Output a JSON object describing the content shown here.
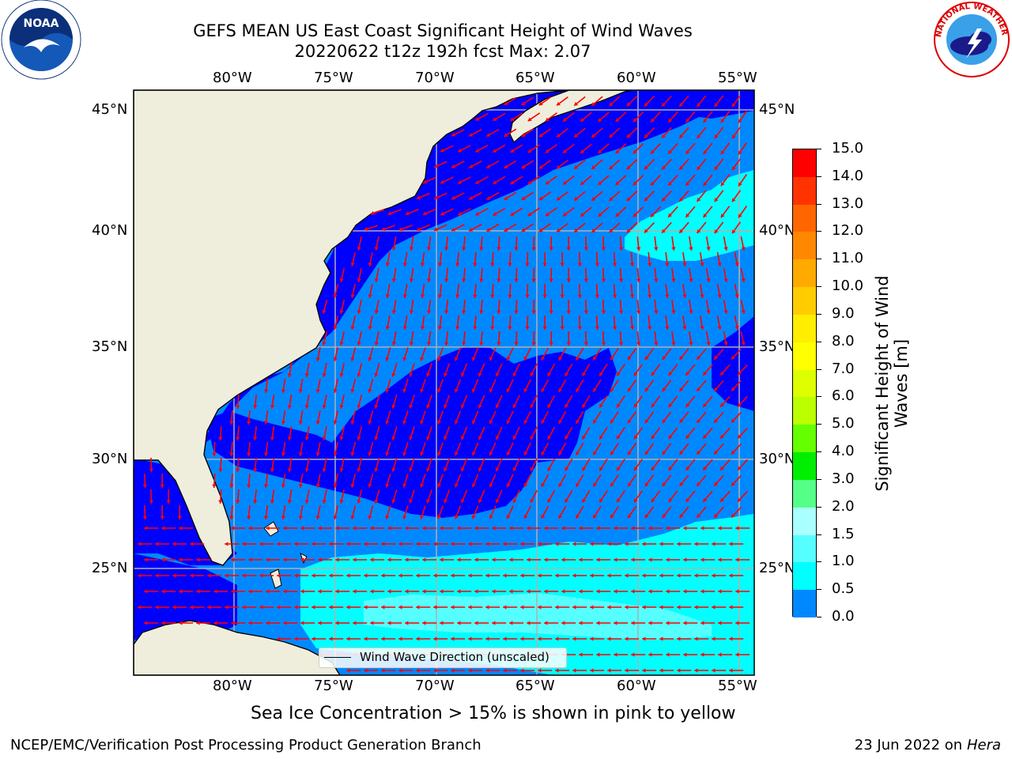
{
  "title_line1": "GEFS MEAN US East Coast Significant Height of Wind Waves",
  "title_line2": "20220622 t12z 192h fcst   Max: 2.07",
  "lon_labels": [
    "80°W",
    "75°W",
    "70°W",
    "65°W",
    "60°W",
    "55°W"
  ],
  "lat_labels": [
    "45°N",
    "40°N",
    "35°N",
    "30°N",
    "25°N"
  ],
  "legend": {
    "label": "Wind Wave Direction (unscaled)"
  },
  "colorbar": {
    "title": "Significant Height of Wind Waves [m]",
    "labels": [
      "15.0",
      "14.0",
      "13.0",
      "12.0",
      "11.0",
      "10.0",
      "9.0",
      "8.0",
      "7.0",
      "6.0",
      "5.0",
      "4.0",
      "3.0",
      "2.0",
      "1.5",
      "1.0",
      "0.5",
      "0.0"
    ],
    "colors": [
      "#ff0000",
      "#ff3300",
      "#ff6600",
      "#ff8800",
      "#ffaa00",
      "#ffcc00",
      "#ffee00",
      "#ffff00",
      "#ddff00",
      "#bbff00",
      "#66ff00",
      "#00ee00",
      "#55ff88",
      "#aaffff",
      "#55ffff",
      "#00ffff",
      "#0088ff",
      "#0000ff"
    ]
  },
  "footer": {
    "sea_ice_note": "Sea Ice Concentration > 15% is shown in pink to yellow",
    "left": "NCEP/EMC/Verification Post Processing Product Generation Branch",
    "right_date": "23 Jun 2022 on",
    "right_machine": "Hera"
  },
  "logos": {
    "left": "NOAA",
    "right": "NATIONAL WEATHER SERVICE"
  },
  "colors": {
    "land": "#efeedc",
    "wave_0_05": "#0000ff",
    "wave_05_1": "#0088ff",
    "wave_1_15": "#00ffff",
    "wave_15_2": "#55ffff",
    "arrows": "#ff0000",
    "grid": "#b0b0b0"
  }
}
